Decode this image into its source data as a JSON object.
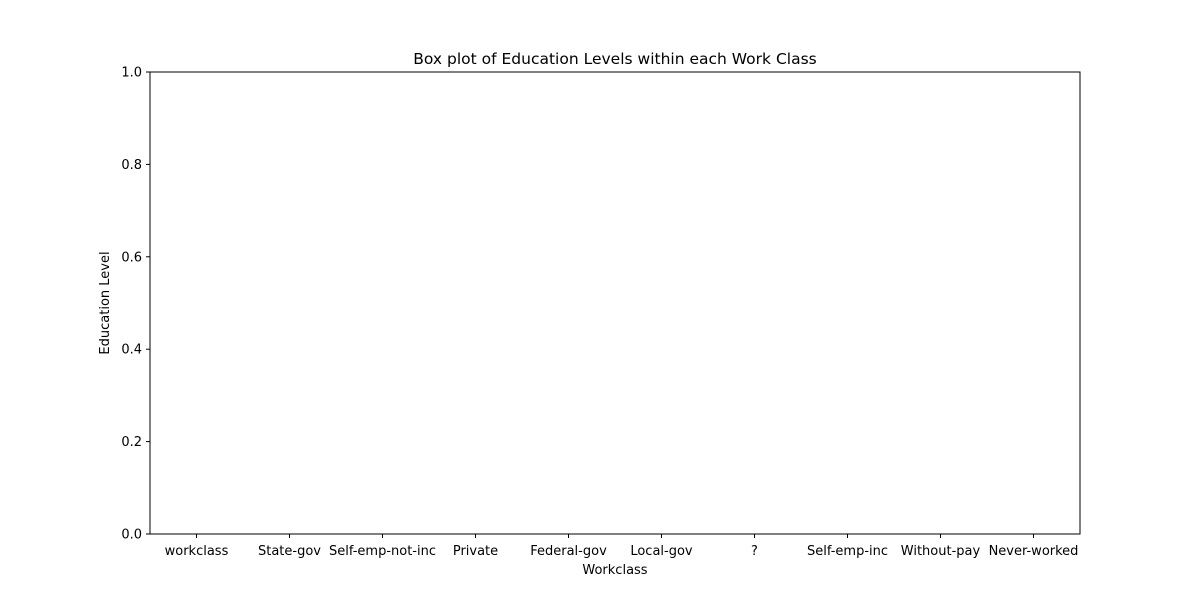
{
  "chart_data": {
    "type": "box",
    "title": "Box plot of Education Levels within each Work Class",
    "xlabel": "Workclass",
    "ylabel": "Education Level",
    "categories": [
      "workclass",
      "State-gov",
      "Self-emp-not-inc",
      "Private",
      "Federal-gov",
      "Local-gov",
      "?",
      "Self-emp-inc",
      "Without-pay",
      "Never-worked"
    ],
    "series": [],
    "ylim": [
      0.0,
      1.0
    ],
    "yticks": [
      "0.0",
      "0.2",
      "0.4",
      "0.6",
      "0.8",
      "1.0"
    ],
    "grid": false,
    "legend": "none",
    "colors": {
      "axis": "#000000",
      "background": "#ffffff"
    }
  }
}
